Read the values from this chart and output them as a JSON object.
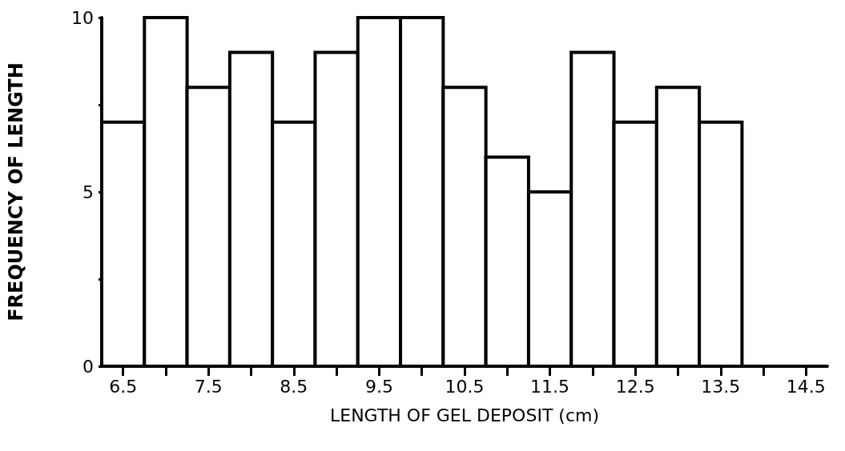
{
  "chart_data": {
    "type": "histogram",
    "xlabel": "LENGTH OF GEL DEPOSIT (cm)",
    "ylabel": "FREQUENCY OF LENGTH",
    "bins": [
      6.25,
      6.75,
      7.25,
      7.75,
      8.25,
      8.75,
      9.25,
      9.75,
      10.25,
      10.75,
      11.25,
      11.75,
      12.25,
      12.75,
      13.25,
      13.75
    ],
    "values": [
      7,
      10,
      8,
      9,
      7,
      9,
      10,
      10,
      8,
      6,
      5,
      9,
      7,
      8,
      7
    ],
    "color": "#ffffff",
    "xlim": [
      6.25,
      14.75
    ],
    "xticks": [
      6.5,
      {
        "value": 7,
        "label": null
      },
      7.5,
      {
        "value": 8,
        "label": null
      },
      8.5,
      {
        "value": 9,
        "label": null
      },
      9.5,
      {
        "value": 10,
        "label": null
      },
      10.5,
      {
        "value": 11,
        "label": null
      },
      11.5,
      {
        "value": 12,
        "label": null
      },
      12.5,
      {
        "value": 13,
        "label": null
      },
      13.5,
      {
        "value": 14,
        "label": null
      },
      14.5
    ],
    "ylim": [
      0,
      10
    ],
    "yticks": [
      0,
      {
        "value": 2.5,
        "label": null
      },
      5,
      {
        "value": 7.5,
        "label": null
      },
      10
    ],
    "grid": false,
    "legend": false
  }
}
